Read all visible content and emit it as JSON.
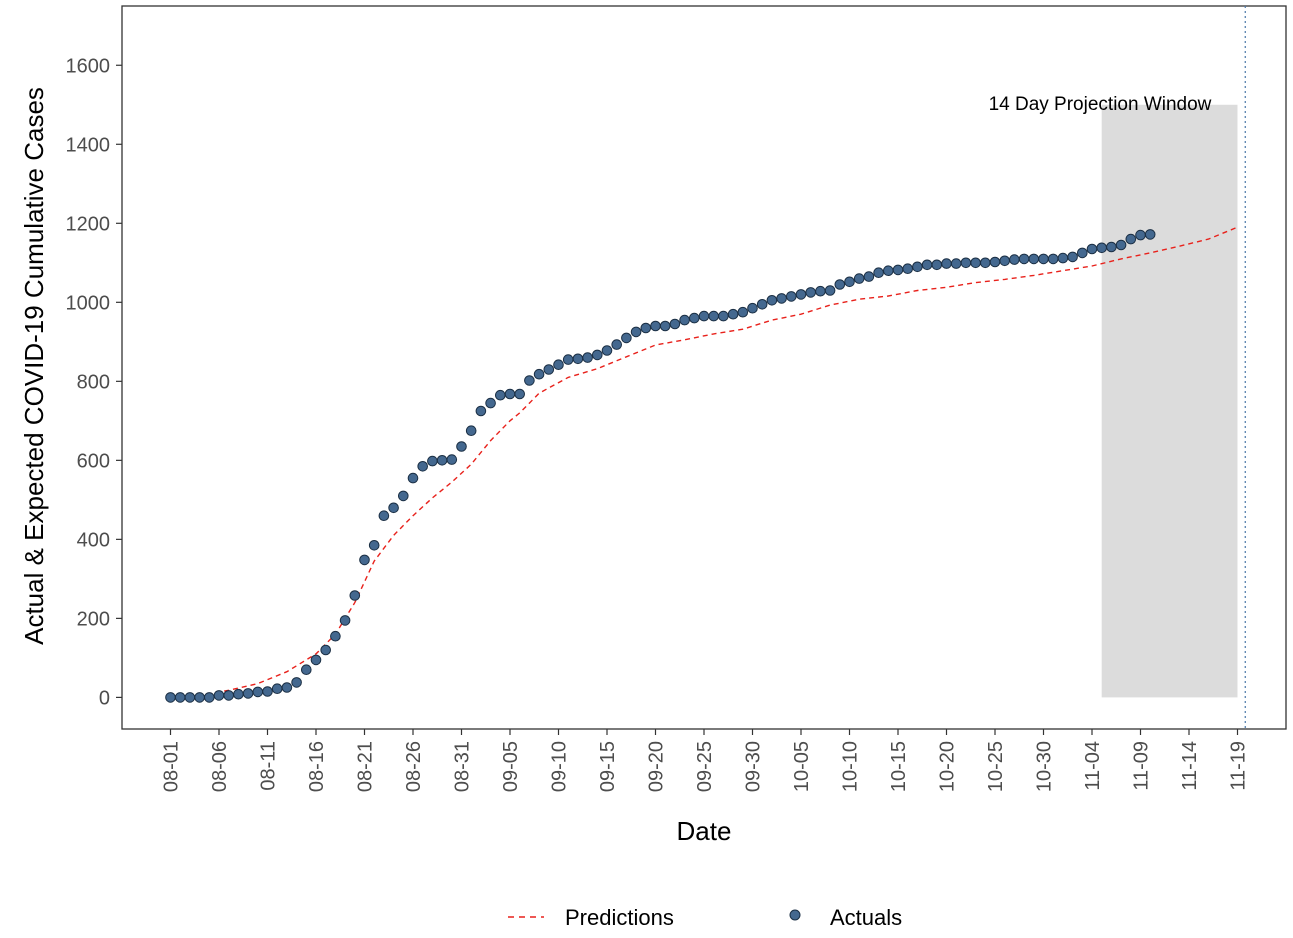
{
  "chart_data": {
    "type": "line",
    "title": "",
    "xlabel": "Date",
    "ylabel": "Actual & Expected COVID-19 Cumulative Cases",
    "ylim": [
      -80,
      1750
    ],
    "yticks": [
      0,
      200,
      400,
      600,
      800,
      1000,
      1200,
      1400,
      1600
    ],
    "x_start_date": "2020-08-01",
    "x_range_days": [
      -5,
      115
    ],
    "x_tick_labels": [
      "08-01",
      "08-06",
      "08-11",
      "08-16",
      "08-21",
      "08-26",
      "08-31",
      "09-05",
      "09-10",
      "09-15",
      "09-20",
      "09-25",
      "09-30",
      "10-05",
      "10-10",
      "10-15",
      "10-20",
      "10-25",
      "10-30",
      "11-04",
      "11-09",
      "11-14",
      "11-19"
    ],
    "projection_window": {
      "label": "14 Day Projection Window",
      "start_day": 96,
      "end_day": 110,
      "y_top": 1500,
      "y_bottom": 0,
      "fill": "#dcdcdc"
    },
    "vline_day": 110.8,
    "grid": false,
    "legend_position": "bottom",
    "colors": {
      "predictions": "#e8211b",
      "actuals_fill": "#44688f",
      "actuals_stroke": "#1b2f44"
    },
    "series": [
      {
        "name": "Actuals",
        "kind": "points",
        "values": [
          0,
          0,
          0,
          0,
          0,
          5,
          5,
          8,
          10,
          14,
          15,
          22,
          25,
          38,
          70,
          95,
          120,
          155,
          195,
          258,
          348,
          385,
          460,
          480,
          510,
          555,
          585,
          598,
          600,
          602,
          635,
          675,
          725,
          745,
          765,
          768,
          768,
          802,
          818,
          830,
          842,
          855,
          857,
          860,
          867,
          878,
          893,
          910,
          925,
          935,
          940,
          940,
          945,
          955,
          960,
          965,
          965,
          965,
          970,
          975,
          985,
          995,
          1005,
          1010,
          1015,
          1020,
          1025,
          1028,
          1030,
          1045,
          1052,
          1060,
          1065,
          1075,
          1080,
          1082,
          1085,
          1090,
          1095,
          1095,
          1098,
          1098,
          1100,
          1100,
          1100,
          1102,
          1105,
          1108,
          1110,
          1110,
          1110,
          1110,
          1112,
          1115,
          1125,
          1135,
          1138,
          1140,
          1145,
          1160,
          1170,
          1172
        ]
      },
      {
        "name": "Predictions",
        "kind": "dashed-line",
        "points": [
          [
            0,
            2
          ],
          [
            3,
            6
          ],
          [
            6,
            18
          ],
          [
            9,
            35
          ],
          [
            12,
            65
          ],
          [
            15,
            110
          ],
          [
            17,
            160
          ],
          [
            19,
            240
          ],
          [
            21,
            345
          ],
          [
            23,
            410
          ],
          [
            25,
            460
          ],
          [
            27,
            505
          ],
          [
            29,
            545
          ],
          [
            31,
            590
          ],
          [
            33,
            650
          ],
          [
            35,
            700
          ],
          [
            36,
            720
          ],
          [
            37,
            745
          ],
          [
            38,
            770
          ],
          [
            41,
            810
          ],
          [
            44,
            832
          ],
          [
            47,
            862
          ],
          [
            50,
            892
          ],
          [
            53,
            905
          ],
          [
            56,
            920
          ],
          [
            59,
            932
          ],
          [
            62,
            955
          ],
          [
            65,
            970
          ],
          [
            68,
            993
          ],
          [
            71,
            1008
          ],
          [
            74,
            1016
          ],
          [
            77,
            1030
          ],
          [
            80,
            1038
          ],
          [
            83,
            1050
          ],
          [
            86,
            1058
          ],
          [
            89,
            1068
          ],
          [
            92,
            1080
          ],
          [
            95,
            1092
          ],
          [
            98,
            1110
          ],
          [
            101,
            1125
          ],
          [
            104,
            1142
          ],
          [
            107,
            1160
          ],
          [
            110,
            1190
          ]
        ]
      }
    ]
  }
}
